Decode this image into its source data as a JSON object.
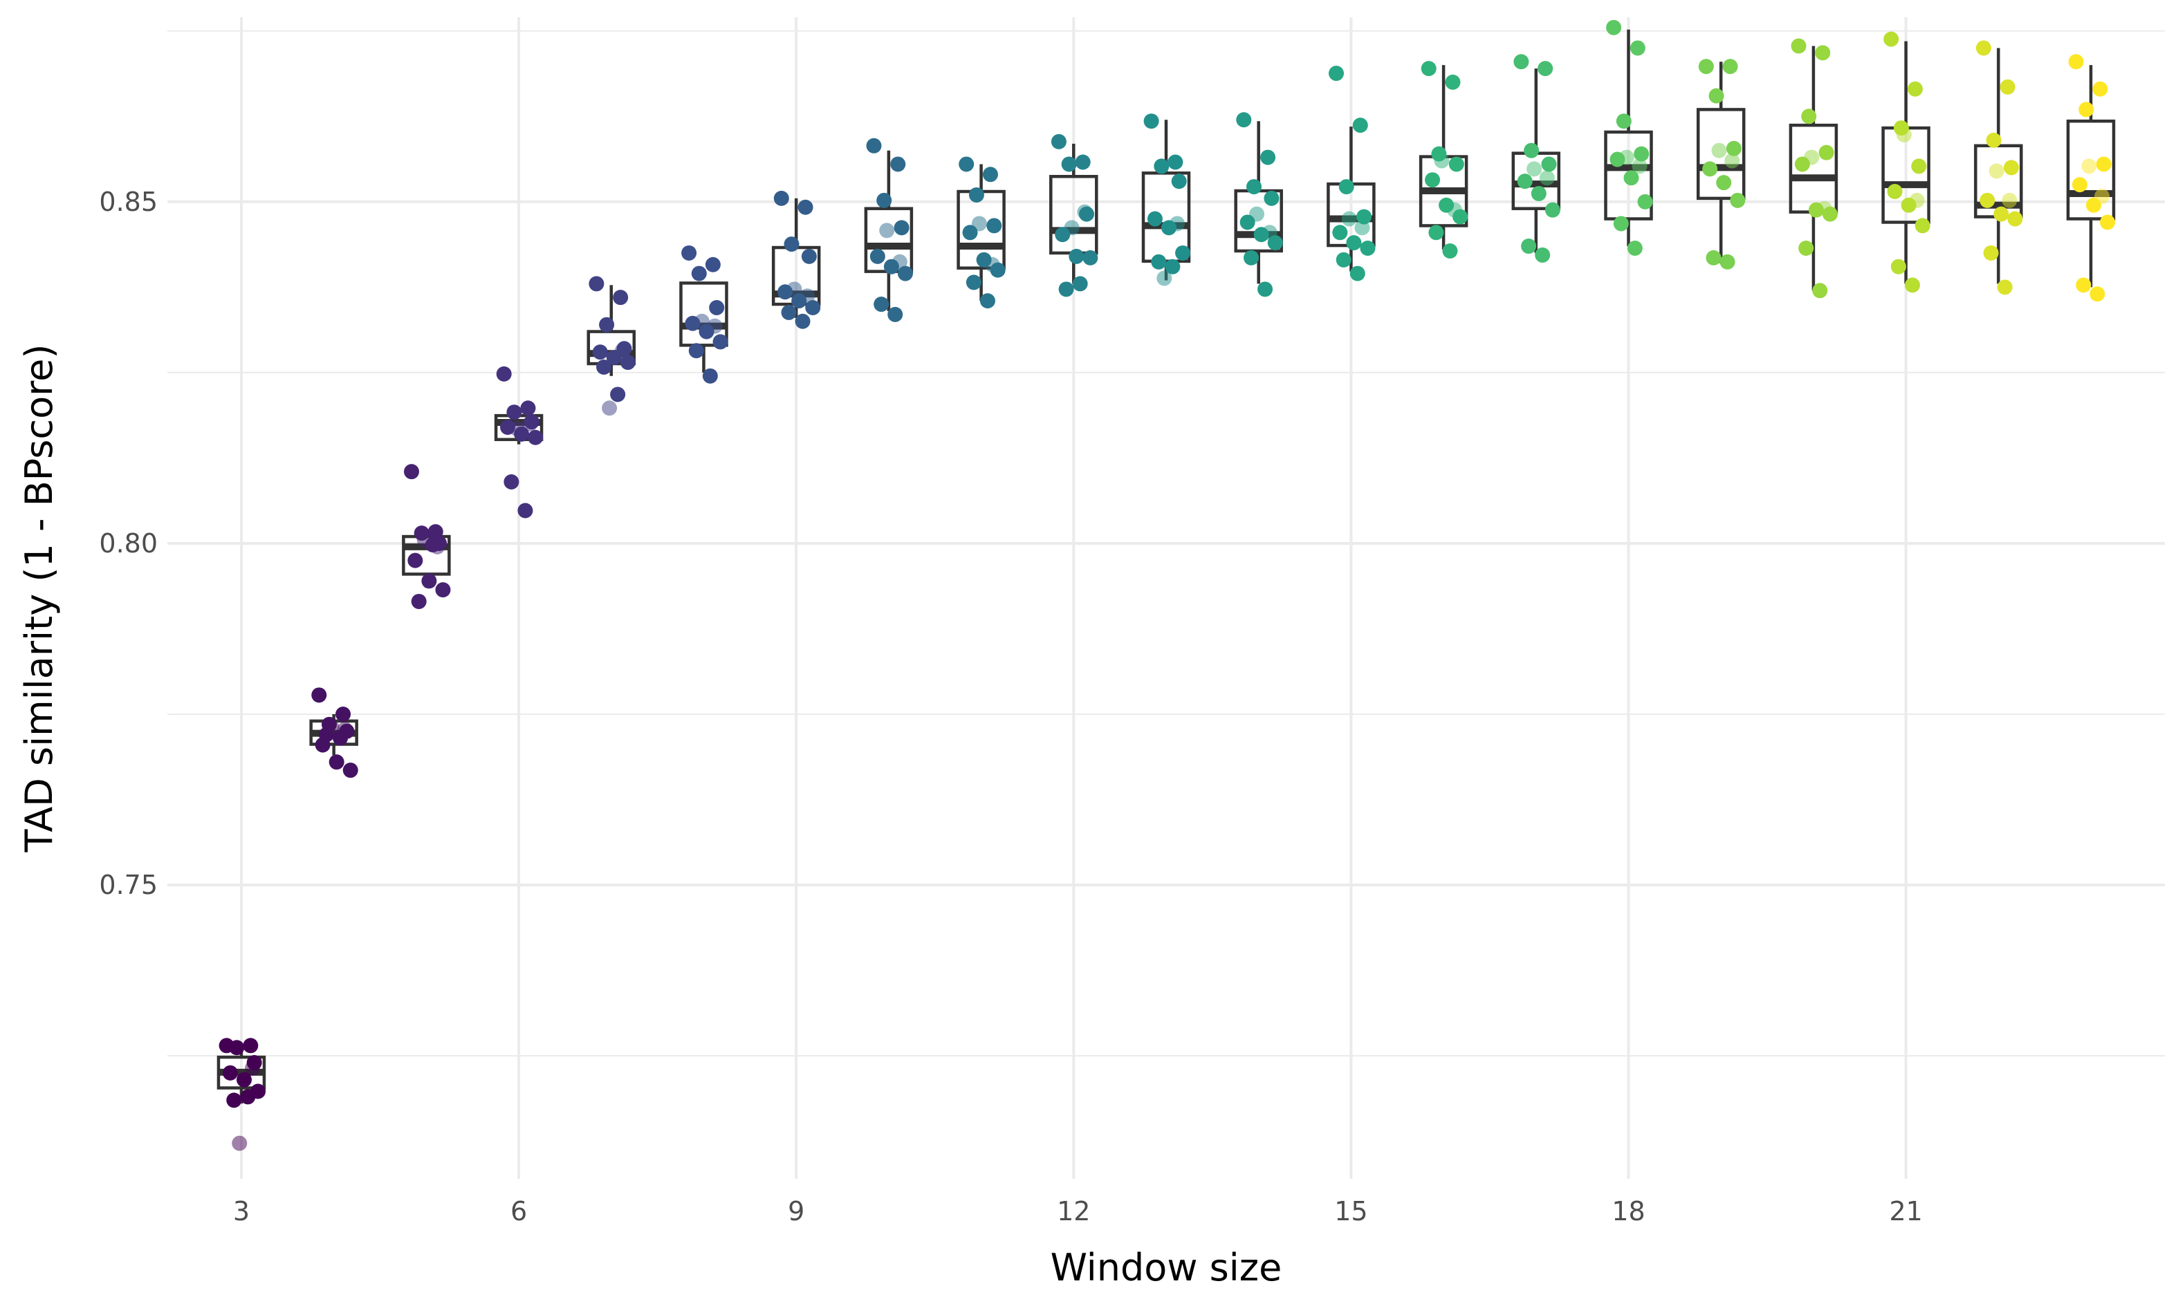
{
  "chart_data": {
    "type": "box",
    "title": "",
    "xlabel": "Window size",
    "ylabel": "TAD similarity (1 - BPscore)",
    "xlim": [
      2.2,
      23.8
    ],
    "ylim": [
      0.707,
      0.877
    ],
    "x_ticks": [
      3,
      6,
      9,
      12,
      15,
      18,
      21
    ],
    "y_ticks": [
      0.75,
      0.8,
      0.85
    ],
    "y_tick_labels": [
      "0.75",
      "0.80",
      "0.85"
    ],
    "y_minor_ticks": [
      0.725,
      0.775,
      0.825,
      0.875
    ],
    "grid": true,
    "legend": "none",
    "colormap": "viridis",
    "boxes": [
      {
        "x": 3,
        "q1": 0.7203,
        "median": 0.7226,
        "q3": 0.7248,
        "whisker_low": 0.718,
        "whisker_high": 0.7255
      },
      {
        "x": 4,
        "q1": 0.7706,
        "median": 0.7722,
        "q3": 0.774,
        "whisker_low": 0.769,
        "whisker_high": 0.775
      },
      {
        "x": 5,
        "q1": 0.7955,
        "median": 0.7995,
        "q3": 0.801,
        "whisker_low": 0.7935,
        "whisker_high": 0.8015
      },
      {
        "x": 6,
        "q1": 0.8152,
        "median": 0.8177,
        "q3": 0.8187,
        "whisker_low": 0.8145,
        "whisker_high": 0.8195
      },
      {
        "x": 7,
        "q1": 0.8263,
        "median": 0.8278,
        "q3": 0.831,
        "whisker_low": 0.8245,
        "whisker_high": 0.8378
      },
      {
        "x": 8,
        "q1": 0.829,
        "median": 0.8318,
        "q3": 0.8381,
        "whisker_low": 0.825,
        "whisker_high": 0.8383
      },
      {
        "x": 9,
        "q1": 0.835,
        "median": 0.8365,
        "q3": 0.8433,
        "whisker_low": 0.833,
        "whisker_high": 0.8505
      },
      {
        "x": 10,
        "q1": 0.8398,
        "median": 0.8435,
        "q3": 0.849,
        "whisker_low": 0.834,
        "whisker_high": 0.8575
      },
      {
        "x": 11,
        "q1": 0.8403,
        "median": 0.8435,
        "q3": 0.8515,
        "whisker_low": 0.8355,
        "whisker_high": 0.8555
      },
      {
        "x": 12,
        "q1": 0.8425,
        "median": 0.8458,
        "q3": 0.8537,
        "whisker_low": 0.838,
        "whisker_high": 0.8585
      },
      {
        "x": 13,
        "q1": 0.8413,
        "median": 0.8465,
        "q3": 0.8542,
        "whisker_low": 0.8385,
        "whisker_high": 0.862
      },
      {
        "x": 14,
        "q1": 0.8428,
        "median": 0.8452,
        "q3": 0.8516,
        "whisker_low": 0.838,
        "whisker_high": 0.8618
      },
      {
        "x": 15,
        "q1": 0.8436,
        "median": 0.8475,
        "q3": 0.8526,
        "whisker_low": 0.8398,
        "whisker_high": 0.861
      },
      {
        "x": 16,
        "q1": 0.8465,
        "median": 0.8516,
        "q3": 0.8566,
        "whisker_low": 0.843,
        "whisker_high": 0.87
      },
      {
        "x": 17,
        "q1": 0.849,
        "median": 0.8526,
        "q3": 0.8571,
        "whisker_low": 0.8425,
        "whisker_high": 0.8695
      },
      {
        "x": 18,
        "q1": 0.8475,
        "median": 0.855,
        "q3": 0.8602,
        "whisker_low": 0.8435,
        "whisker_high": 0.8752
      },
      {
        "x": 19,
        "q1": 0.8505,
        "median": 0.855,
        "q3": 0.8635,
        "whisker_low": 0.841,
        "whisker_high": 0.8705
      },
      {
        "x": 20,
        "q1": 0.8485,
        "median": 0.8535,
        "q3": 0.8612,
        "whisker_low": 0.837,
        "whisker_high": 0.8728
      },
      {
        "x": 21,
        "q1": 0.847,
        "median": 0.8525,
        "q3": 0.8608,
        "whisker_low": 0.838,
        "whisker_high": 0.8735
      },
      {
        "x": 22,
        "q1": 0.8478,
        "median": 0.8495,
        "q3": 0.8582,
        "whisker_low": 0.838,
        "whisker_high": 0.8725
      },
      {
        "x": 23,
        "q1": 0.8475,
        "median": 0.8512,
        "q3": 0.8618,
        "whisker_low": 0.8375,
        "whisker_high": 0.87
      }
    ],
    "points": [
      {
        "x": 3,
        "values": [
          0.7265,
          0.7265,
          0.7262,
          0.724,
          0.7225,
          0.7215,
          0.7198,
          0.7185,
          0.719,
          0.7122,
          0.7232
        ]
      },
      {
        "x": 4,
        "values": [
          0.7778,
          0.775,
          0.7735,
          0.7725,
          0.7705,
          0.768,
          0.7668,
          0.772,
          0.7715,
          0.773,
          0.7728
        ]
      },
      {
        "x": 5,
        "values": [
          0.8105,
          0.8017,
          0.8015,
          0.8,
          0.7975,
          0.7945,
          0.7932,
          0.7915,
          0.7998,
          0.8005,
          0.7995
        ]
      },
      {
        "x": 6,
        "values": [
          0.8248,
          0.8198,
          0.8192,
          0.8178,
          0.817,
          0.816,
          0.8155,
          0.809,
          0.8048,
          0.8168,
          0.8175
        ]
      },
      {
        "x": 7,
        "values": [
          0.838,
          0.836,
          0.832,
          0.8285,
          0.828,
          0.8272,
          0.8265,
          0.8258,
          0.8218,
          0.8198,
          0.8282
        ]
      },
      {
        "x": 8,
        "values": [
          0.8425,
          0.8408,
          0.8395,
          0.8345,
          0.8322,
          0.831,
          0.8295,
          0.8282,
          0.8245,
          0.8325,
          0.8318
        ]
      },
      {
        "x": 9,
        "values": [
          0.8505,
          0.8492,
          0.8438,
          0.842,
          0.8368,
          0.8355,
          0.8345,
          0.8338,
          0.8325,
          0.8372,
          0.8362
        ]
      },
      {
        "x": 10,
        "values": [
          0.8582,
          0.8555,
          0.8502,
          0.8462,
          0.842,
          0.8405,
          0.8395,
          0.835,
          0.8335,
          0.8458,
          0.8412
        ]
      },
      {
        "x": 11,
        "values": [
          0.8555,
          0.854,
          0.851,
          0.8465,
          0.8455,
          0.8415,
          0.84,
          0.8382,
          0.8355,
          0.8468,
          0.8408
        ]
      },
      {
        "x": 12,
        "values": [
          0.8588,
          0.8558,
          0.8555,
          0.8482,
          0.8452,
          0.842,
          0.8418,
          0.8372,
          0.838,
          0.8462,
          0.8485
        ]
      },
      {
        "x": 13,
        "values": [
          0.8618,
          0.8558,
          0.8552,
          0.853,
          0.8475,
          0.8462,
          0.8425,
          0.8412,
          0.8405,
          0.8388,
          0.8468
        ]
      },
      {
        "x": 14,
        "values": [
          0.862,
          0.8565,
          0.8522,
          0.8505,
          0.847,
          0.8452,
          0.844,
          0.8418,
          0.8372,
          0.8482,
          0.8455
        ]
      },
      {
        "x": 15,
        "values": [
          0.8688,
          0.8612,
          0.8522,
          0.8478,
          0.8455,
          0.844,
          0.8432,
          0.8415,
          0.8395,
          0.8475,
          0.8462
        ]
      },
      {
        "x": 16,
        "values": [
          0.8695,
          0.8675,
          0.857,
          0.8555,
          0.8532,
          0.8495,
          0.8478,
          0.8455,
          0.8428,
          0.856,
          0.8488
        ]
      },
      {
        "x": 17,
        "values": [
          0.8705,
          0.8695,
          0.8575,
          0.8555,
          0.853,
          0.8512,
          0.8488,
          0.8435,
          0.8422,
          0.8548,
          0.8535
        ]
      },
      {
        "x": 18,
        "values": [
          0.8755,
          0.8725,
          0.8618,
          0.857,
          0.8562,
          0.8535,
          0.85,
          0.8468,
          0.8432,
          0.8565,
          0.8552
        ]
      },
      {
        "x": 19,
        "values": [
          0.8698,
          0.8698,
          0.8655,
          0.8578,
          0.8548,
          0.8528,
          0.8502,
          0.8418,
          0.8412,
          0.8575,
          0.856
        ]
      },
      {
        "x": 20,
        "values": [
          0.8728,
          0.8718,
          0.8625,
          0.8572,
          0.8555,
          0.8488,
          0.8482,
          0.8432,
          0.837,
          0.8565,
          0.849
        ]
      },
      {
        "x": 21,
        "values": [
          0.8738,
          0.8665,
          0.8608,
          0.8552,
          0.8515,
          0.8495,
          0.8465,
          0.8405,
          0.8378,
          0.8598,
          0.8502
        ]
      },
      {
        "x": 22,
        "values": [
          0.8725,
          0.8668,
          0.859,
          0.855,
          0.8502,
          0.8482,
          0.8475,
          0.8425,
          0.8375,
          0.8545,
          0.8502
        ]
      },
      {
        "x": 23,
        "values": [
          0.8705,
          0.8665,
          0.8635,
          0.8555,
          0.8525,
          0.8495,
          0.847,
          0.8378,
          0.8365,
          0.8552,
          0.8508
        ]
      }
    ]
  }
}
